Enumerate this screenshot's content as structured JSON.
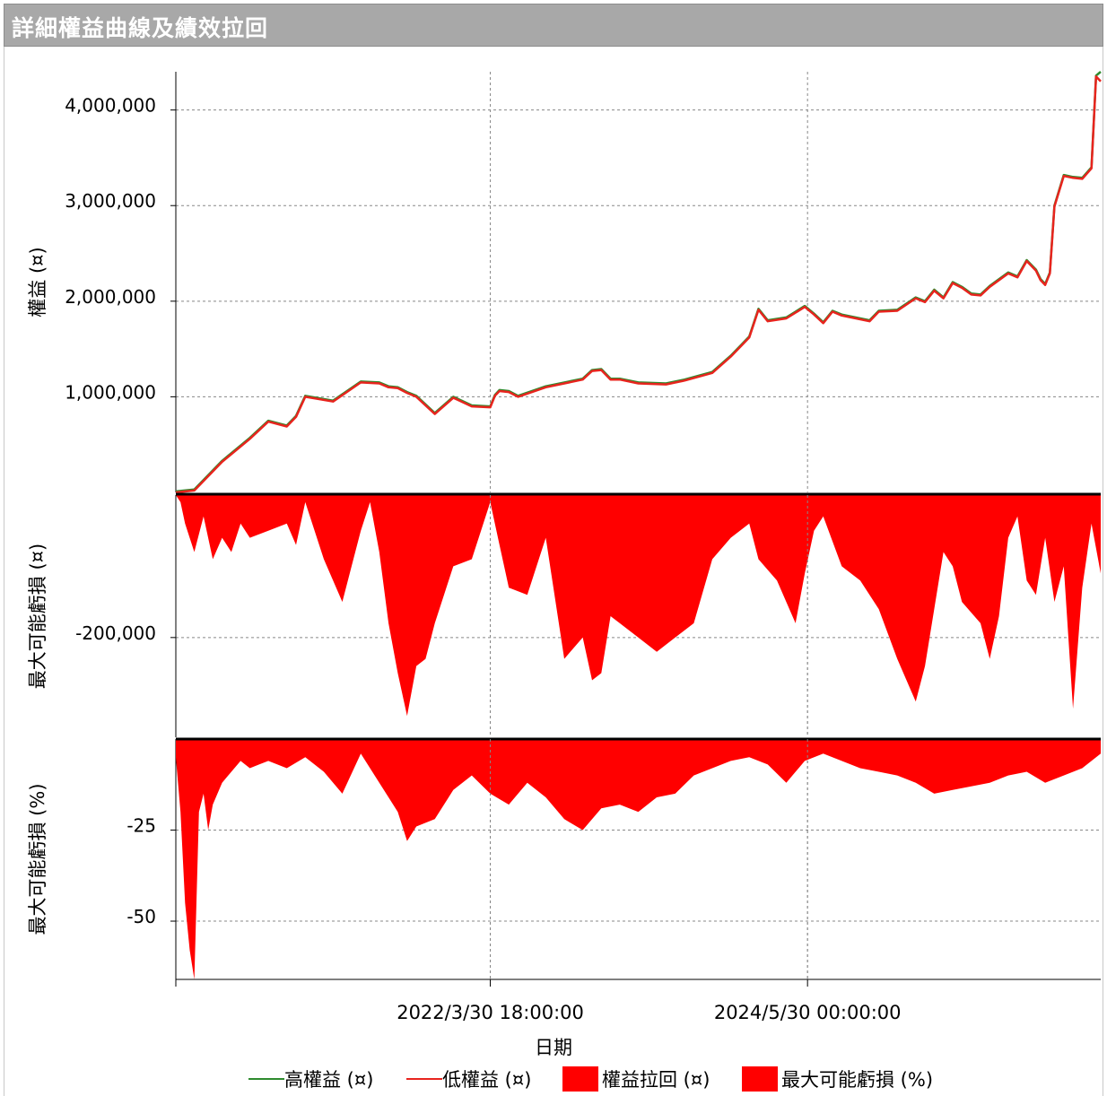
{
  "window": {
    "title": "詳細權益曲線及績效拉回"
  },
  "chart_data": {
    "type": "line",
    "xlabel": "日期",
    "x_ticks": [
      "2022/3/30 18:00:00",
      "2024/5/30 00:00:00"
    ],
    "legend": {
      "placement": "bottom",
      "items": [
        {
          "label": "高權益 (¤)",
          "type": "line",
          "color": "#2e8b2e"
        },
        {
          "label": "低權益 (¤)",
          "type": "line",
          "color": "#e8241e"
        },
        {
          "label": "權益拉回 (¤)",
          "type": "box",
          "color": "#ff0000"
        },
        {
          "label": "最大可能虧損 (%)",
          "type": "box",
          "color": "#ff0000"
        }
      ]
    },
    "panels": [
      {
        "id": "equity",
        "ylabel": "權益 (¤)",
        "ylim": [
          0,
          4400000
        ],
        "yticks": [
          {
            "value": 1000000,
            "label": "1,000,000"
          },
          {
            "value": 2000000,
            "label": "2,000,000"
          },
          {
            "value": 3000000,
            "label": "3,000,000"
          },
          {
            "value": 4000000,
            "label": "4,000,000"
          }
        ],
        "series": [
          {
            "name": "高權益 (¤)",
            "color": "#2e8b2e",
            "x": [
              0,
              0.02,
              0.05,
              0.08,
              0.1,
              0.12,
              0.13,
              0.14,
              0.17,
              0.2,
              0.22,
              0.23,
              0.24,
              0.25,
              0.26,
              0.28,
              0.3,
              0.32,
              0.34,
              0.345,
              0.35,
              0.36,
              0.37,
              0.4,
              0.44,
              0.45,
              0.46,
              0.47,
              0.48,
              0.5,
              0.53,
              0.55,
              0.58,
              0.6,
              0.62,
              0.63,
              0.64,
              0.66,
              0.67,
              0.68,
              0.69,
              0.7,
              0.71,
              0.72,
              0.73,
              0.75,
              0.76,
              0.78,
              0.8,
              0.81,
              0.82,
              0.83,
              0.84,
              0.85,
              0.86,
              0.87,
              0.88,
              0.9,
              0.91,
              0.92,
              0.93,
              0.935,
              0.94,
              0.945,
              0.95,
              0.96,
              0.97,
              0.98,
              0.99,
              0.995,
              1.0
            ],
            "y": [
              10000,
              30000,
              330000,
              570000,
              750000,
              700000,
              800000,
              1010000,
              960000,
              1160000,
              1150000,
              1110000,
              1100000,
              1050000,
              1010000,
              830000,
              1000000,
              910000,
              900000,
              1020000,
              1070000,
              1060000,
              1010000,
              1110000,
              1190000,
              1280000,
              1290000,
              1190000,
              1190000,
              1150000,
              1140000,
              1180000,
              1260000,
              1430000,
              1630000,
              1920000,
              1800000,
              1830000,
              1890000,
              1950000,
              1870000,
              1780000,
              1900000,
              1860000,
              1840000,
              1800000,
              1900000,
              1910000,
              2040000,
              2000000,
              2120000,
              2040000,
              2200000,
              2150000,
              2080000,
              2070000,
              2160000,
              2300000,
              2260000,
              2430000,
              2330000,
              2230000,
              2180000,
              2300000,
              3000000,
              3320000,
              3300000,
              3290000,
              3400000,
              4360000,
              4400000
            ]
          },
          {
            "name": "低權益 (¤)",
            "color": "#e8241e",
            "x": [
              0,
              0.02,
              0.05,
              0.08,
              0.1,
              0.12,
              0.13,
              0.14,
              0.17,
              0.2,
              0.22,
              0.23,
              0.24,
              0.25,
              0.26,
              0.28,
              0.3,
              0.32,
              0.34,
              0.345,
              0.35,
              0.36,
              0.37,
              0.4,
              0.44,
              0.45,
              0.46,
              0.47,
              0.48,
              0.5,
              0.53,
              0.55,
              0.58,
              0.6,
              0.62,
              0.63,
              0.64,
              0.66,
              0.67,
              0.68,
              0.69,
              0.7,
              0.71,
              0.72,
              0.73,
              0.75,
              0.76,
              0.78,
              0.8,
              0.81,
              0.82,
              0.83,
              0.84,
              0.85,
              0.86,
              0.87,
              0.88,
              0.9,
              0.91,
              0.92,
              0.93,
              0.935,
              0.94,
              0.945,
              0.95,
              0.96,
              0.97,
              0.98,
              0.99,
              0.995,
              1.0
            ],
            "y": [
              0,
              20000,
              320000,
              560000,
              740000,
              690000,
              790000,
              1000000,
              950000,
              1150000,
              1140000,
              1100000,
              1090000,
              1040000,
              1000000,
              820000,
              990000,
              900000,
              890000,
              1010000,
              1060000,
              1050000,
              1000000,
              1100000,
              1180000,
              1270000,
              1280000,
              1180000,
              1180000,
              1140000,
              1130000,
              1170000,
              1250000,
              1420000,
              1620000,
              1910000,
              1790000,
              1820000,
              1880000,
              1940000,
              1860000,
              1770000,
              1890000,
              1850000,
              1830000,
              1790000,
              1890000,
              1900000,
              2030000,
              1990000,
              2110000,
              2030000,
              2190000,
              2140000,
              2070000,
              2060000,
              2150000,
              2290000,
              2250000,
              2420000,
              2320000,
              2220000,
              2170000,
              2290000,
              2990000,
              3310000,
              3290000,
              3280000,
              3390000,
              4350000,
              4300000
            ]
          }
        ]
      },
      {
        "id": "drawdown",
        "ylabel": "最大可能虧損 (¤)",
        "ylim": [
          -340000,
          0
        ],
        "yticks": [
          {
            "value": -200000,
            "label": "-200,000"
          }
        ],
        "series": [
          {
            "name": "權益拉回 (¤)",
            "color": "#ff0000",
            "x": [
              0,
              0.005,
              0.01,
              0.02,
              0.03,
              0.04,
              0.05,
              0.06,
              0.07,
              0.08,
              0.1,
              0.12,
              0.13,
              0.14,
              0.16,
              0.18,
              0.2,
              0.21,
              0.22,
              0.23,
              0.24,
              0.25,
              0.26,
              0.27,
              0.28,
              0.3,
              0.32,
              0.34,
              0.35,
              0.36,
              0.38,
              0.4,
              0.42,
              0.44,
              0.45,
              0.46,
              0.47,
              0.48,
              0.5,
              0.52,
              0.54,
              0.56,
              0.58,
              0.6,
              0.62,
              0.63,
              0.65,
              0.67,
              0.68,
              0.69,
              0.7,
              0.72,
              0.74,
              0.76,
              0.78,
              0.8,
              0.81,
              0.82,
              0.83,
              0.84,
              0.85,
              0.87,
              0.88,
              0.89,
              0.9,
              0.91,
              0.92,
              0.93,
              0.94,
              0.95,
              0.96,
              0.97,
              0.98,
              0.99,
              1.0
            ],
            "y": [
              0,
              -10000,
              -40000,
              -80000,
              -30000,
              -90000,
              -60000,
              -80000,
              -40000,
              -60000,
              -50000,
              -40000,
              -70000,
              -10000,
              -90000,
              -150000,
              -50000,
              -10000,
              -80000,
              -180000,
              -250000,
              -310000,
              -240000,
              -230000,
              -180000,
              -100000,
              -90000,
              -10000,
              -70000,
              -130000,
              -140000,
              -60000,
              -230000,
              -200000,
              -260000,
              -250000,
              -170000,
              -180000,
              -200000,
              -220000,
              -200000,
              -180000,
              -90000,
              -60000,
              -40000,
              -90000,
              -120000,
              -180000,
              -110000,
              -50000,
              -30000,
              -100000,
              -120000,
              -160000,
              -230000,
              -290000,
              -240000,
              -160000,
              -80000,
              -100000,
              -150000,
              -180000,
              -230000,
              -170000,
              -60000,
              -30000,
              -120000,
              -140000,
              -60000,
              -150000,
              -100000,
              -300000,
              -130000,
              -40000,
              -110000
            ]
          }
        ]
      },
      {
        "id": "drawdown_pct",
        "ylabel": "最大可能虧損 (%)",
        "ylim": [
          -66,
          0
        ],
        "yticks": [
          {
            "value": -25,
            "label": "-25"
          },
          {
            "value": -50,
            "label": "-50"
          }
        ],
        "series": [
          {
            "name": "最大可能虧損 (%)",
            "color": "#ff0000",
            "x": [
              0,
              0.005,
              0.01,
              0.015,
              0.02,
              0.025,
              0.03,
              0.035,
              0.04,
              0.05,
              0.06,
              0.07,
              0.08,
              0.09,
              0.1,
              0.12,
              0.14,
              0.16,
              0.18,
              0.2,
              0.22,
              0.24,
              0.25,
              0.26,
              0.28,
              0.3,
              0.32,
              0.34,
              0.36,
              0.38,
              0.4,
              0.42,
              0.44,
              0.46,
              0.48,
              0.5,
              0.52,
              0.54,
              0.56,
              0.58,
              0.6,
              0.62,
              0.64,
              0.66,
              0.68,
              0.7,
              0.72,
              0.74,
              0.76,
              0.78,
              0.8,
              0.82,
              0.84,
              0.86,
              0.88,
              0.9,
              0.92,
              0.94,
              0.96,
              0.98,
              1.0
            ],
            "y": [
              -5,
              -20,
              -45,
              -58,
              -66,
              -20,
              -15,
              -25,
              -18,
              -12,
              -9,
              -6,
              -8,
              -7,
              -6,
              -8,
              -5,
              -9,
              -15,
              -4,
              -12,
              -20,
              -28,
              -24,
              -22,
              -14,
              -10,
              -15,
              -18,
              -12,
              -16,
              -22,
              -25,
              -19,
              -18,
              -20,
              -16,
              -15,
              -10,
              -8,
              -6,
              -5,
              -7,
              -12,
              -6,
              -4,
              -6,
              -8,
              -9,
              -10,
              -12,
              -15,
              -14,
              -13,
              -12,
              -10,
              -9,
              -12,
              -10,
              -8,
              -4
            ]
          }
        ]
      }
    ]
  }
}
